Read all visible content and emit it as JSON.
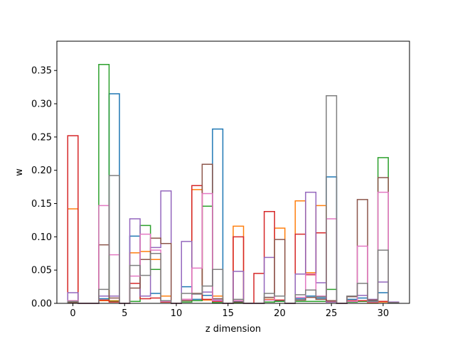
{
  "chart_data": {
    "type": "bar",
    "histtype": "step",
    "xlabel": "z dimension",
    "ylabel": "w",
    "xlim": [
      -1.55,
      32.55
    ],
    "ylim": [
      0,
      0.394
    ],
    "xticks": [
      0,
      5,
      10,
      15,
      20,
      25,
      30
    ],
    "xtick_labels": [
      "0",
      "5",
      "10",
      "15",
      "20",
      "25",
      "30"
    ],
    "yticks": [
      0.0,
      0.05,
      0.1,
      0.15,
      0.2,
      0.25,
      0.3,
      0.35
    ],
    "ytick_labels": [
      "0.00",
      "0.05",
      "0.10",
      "0.15",
      "0.20",
      "0.25",
      "0.30",
      "0.35"
    ],
    "bin_width": 1,
    "bin_centers": [
      0,
      1,
      2,
      3,
      4,
      5,
      6,
      7,
      8,
      9,
      10,
      11,
      12,
      13,
      14,
      15,
      16,
      17,
      18,
      19,
      20,
      21,
      22,
      23,
      24,
      25,
      26,
      27,
      28,
      29,
      30,
      31
    ],
    "series": [
      {
        "color": "#1f77b4",
        "values": [
          0.001,
          0,
          0,
          0.007,
          0.315,
          0,
          0.101,
          0.011,
          0.015,
          0.003,
          0,
          0.025,
          0.006,
          0.012,
          0.262,
          0,
          0.003,
          0,
          0,
          0.009,
          0.004,
          0,
          0.007,
          0.011,
          0.008,
          0.19,
          0,
          0.006,
          0.008,
          0.004,
          0.016,
          0.001
        ]
      },
      {
        "color": "#ff7f0e",
        "values": [
          0.142,
          0,
          0,
          0.004,
          0.004,
          0,
          0.076,
          0.078,
          0.066,
          0.011,
          0,
          0.004,
          0.171,
          0.005,
          0.011,
          0,
          0.116,
          0,
          0,
          0.006,
          0.113,
          0,
          0.154,
          0.046,
          0.147,
          0.003,
          0,
          0.004,
          0.004,
          0.001,
          0.002,
          0.001
        ]
      },
      {
        "color": "#2ca02c",
        "values": [
          0.001,
          0,
          0,
          0.359,
          0.003,
          0,
          0.003,
          0.117,
          0.051,
          0.002,
          0,
          0.002,
          0.004,
          0.146,
          0.001,
          0,
          0.001,
          0,
          0,
          0.002,
          0.003,
          0,
          0.003,
          0.003,
          0.003,
          0.021,
          0,
          0.002,
          0.003,
          0.002,
          0.219,
          0.001
        ]
      },
      {
        "color": "#d62728",
        "values": [
          0.252,
          0,
          0,
          0.005,
          0.002,
          0,
          0.03,
          0.007,
          0.008,
          0.002,
          0,
          0.006,
          0.177,
          0.006,
          0.003,
          0,
          0.1,
          0,
          0.045,
          0.138,
          0.005,
          0,
          0.104,
          0.043,
          0.106,
          0.002,
          0,
          0.004,
          0.004,
          0.002,
          0.003,
          0.001
        ]
      },
      {
        "color": "#9467bd",
        "values": [
          0.016,
          0,
          0,
          0.011,
          0.011,
          0,
          0.127,
          0.011,
          0.084,
          0.169,
          0,
          0.093,
          0.014,
          0.017,
          0.005,
          0,
          0.048,
          0,
          0,
          0.069,
          0.011,
          0,
          0.044,
          0.167,
          0.031,
          0.002,
          0,
          0.011,
          0.012,
          0.006,
          0.032,
          0.002
        ]
      },
      {
        "color": "#8c564b",
        "values": [
          0.001,
          0,
          0,
          0.088,
          0.008,
          0,
          0.023,
          0.066,
          0.098,
          0.09,
          0,
          0.004,
          0.015,
          0.209,
          0.007,
          0,
          0.002,
          0,
          0,
          0.009,
          0.096,
          0,
          0.005,
          0.009,
          0.006,
          0.004,
          0,
          0.01,
          0.156,
          0.005,
          0.189,
          0.001
        ]
      },
      {
        "color": "#e377c2",
        "values": [
          0.004,
          0,
          0,
          0.147,
          0.073,
          0,
          0.041,
          0.104,
          0.08,
          0.003,
          0,
          0.006,
          0.053,
          0.165,
          0.004,
          0,
          0.004,
          0,
          0,
          0.005,
          0.011,
          0,
          0.009,
          0.044,
          0.011,
          0.127,
          0,
          0.003,
          0.086,
          0.002,
          0.167,
          0.001
        ]
      },
      {
        "color": "#7f7f7f",
        "values": [
          0.003,
          0,
          0,
          0.021,
          0.192,
          0,
          0.057,
          0.042,
          0.075,
          0.004,
          0,
          0.015,
          0.014,
          0.026,
          0.051,
          0,
          0.006,
          0,
          0,
          0.015,
          0.011,
          0,
          0.013,
          0.02,
          0.01,
          0.312,
          0,
          0.011,
          0.03,
          0.003,
          0.08,
          0.001
        ]
      }
    ]
  }
}
